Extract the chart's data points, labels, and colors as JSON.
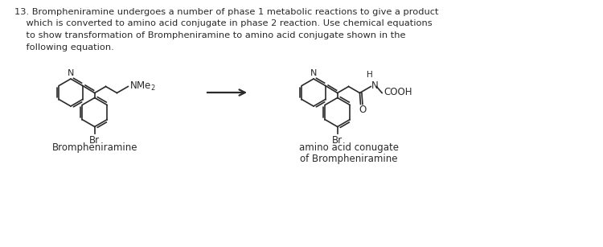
{
  "background_color": "#ffffff",
  "text_color": "#2a2a2a",
  "title_lines": [
    "13. Brompheniramine undergoes a number of phase 1 metabolic reactions to give a product",
    "    which is converted to amino acid conjugate in phase 2 reaction. Use chemical equations",
    "    to show transformation of Brompheniramine to amino acid conjugate shown in the",
    "    following equation."
  ],
  "label1": "Brompheniramine",
  "label2_line1": "amino acid conugate",
  "label2_line2": "of Brompheniramine",
  "nme2_label": "NMe$_2$",
  "cooh_label": "COOH",
  "br_label": "Br",
  "n_label": "N",
  "h_label": "H",
  "nh_label": "N",
  "o_label": "O",
  "pyr_r": 17,
  "ph_r": 18,
  "lw": 1.2
}
